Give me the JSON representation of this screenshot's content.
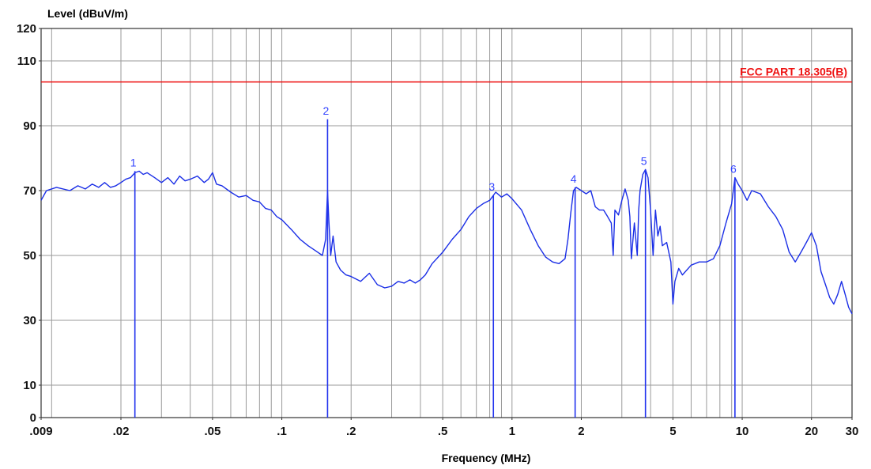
{
  "chart_data": {
    "type": "line",
    "xlabel": "Frequency (MHz)",
    "ylabel": "Level (dBuV/m)",
    "xscale": "log",
    "xlim": [
      0.009,
      30
    ],
    "ylim": [
      0,
      120
    ],
    "x_ticks": [
      {
        "value": 0.009,
        "label": ".009"
      },
      {
        "value": 0.02,
        "label": ".02"
      },
      {
        "value": 0.05,
        "label": ".05"
      },
      {
        "value": 0.1,
        "label": ".1"
      },
      {
        "value": 0.2,
        "label": ".2"
      },
      {
        "value": 0.5,
        "label": ".5"
      },
      {
        "value": 1,
        "label": "1"
      },
      {
        "value": 2,
        "label": "2"
      },
      {
        "value": 5,
        "label": "5"
      },
      {
        "value": 10,
        "label": "10"
      },
      {
        "value": 20,
        "label": "20"
      },
      {
        "value": 30,
        "label": "30"
      }
    ],
    "y_ticks": [
      {
        "value": 0,
        "label": "0"
      },
      {
        "value": 10,
        "label": "10"
      },
      {
        "value": 30,
        "label": "30"
      },
      {
        "value": 50,
        "label": "50"
      },
      {
        "value": 70,
        "label": "70"
      },
      {
        "value": 90,
        "label": "90"
      },
      {
        "value": 110,
        "label": "110"
      },
      {
        "value": 120,
        "label": "120"
      }
    ],
    "x_grid": [
      0.009,
      0.01,
      0.02,
      0.03,
      0.04,
      0.05,
      0.06,
      0.07,
      0.08,
      0.09,
      0.1,
      0.2,
      0.3,
      0.4,
      0.5,
      0.6,
      0.7,
      0.8,
      0.9,
      1,
      2,
      3,
      4,
      5,
      6,
      7,
      8,
      9,
      10,
      20,
      30
    ],
    "y_grid": [
      10,
      30,
      50,
      70,
      90,
      110
    ],
    "grid": true,
    "limit_line": {
      "label": "FCC PART 18.305(B)",
      "value": 103.5,
      "color": "#ee1111"
    },
    "series": [
      {
        "color": "#1a2ee6",
        "points": [
          [
            0.009,
            67
          ],
          [
            0.0095,
            70
          ],
          [
            0.0105,
            71
          ],
          [
            0.012,
            70
          ],
          [
            0.013,
            71.5
          ],
          [
            0.014,
            70.5
          ],
          [
            0.015,
            72
          ],
          [
            0.016,
            71
          ],
          [
            0.017,
            72.5
          ],
          [
            0.018,
            71
          ],
          [
            0.019,
            71.5
          ],
          [
            0.02,
            72.5
          ],
          [
            0.021,
            73.5
          ],
          [
            0.022,
            74
          ],
          [
            0.023,
            75.5
          ],
          [
            0.024,
            76
          ],
          [
            0.025,
            75
          ],
          [
            0.026,
            75.5
          ],
          [
            0.028,
            74
          ],
          [
            0.03,
            72.5
          ],
          [
            0.032,
            74
          ],
          [
            0.034,
            72
          ],
          [
            0.036,
            74.5
          ],
          [
            0.038,
            73
          ],
          [
            0.04,
            73.5
          ],
          [
            0.043,
            74.5
          ],
          [
            0.046,
            72.5
          ],
          [
            0.048,
            73.5
          ],
          [
            0.05,
            75.5
          ],
          [
            0.052,
            72
          ],
          [
            0.055,
            71.5
          ],
          [
            0.06,
            69.5
          ],
          [
            0.065,
            68
          ],
          [
            0.07,
            68.5
          ],
          [
            0.075,
            67
          ],
          [
            0.08,
            66.5
          ],
          [
            0.085,
            64.5
          ],
          [
            0.09,
            64
          ],
          [
            0.095,
            62
          ],
          [
            0.1,
            61
          ],
          [
            0.11,
            58
          ],
          [
            0.12,
            55
          ],
          [
            0.13,
            53
          ],
          [
            0.14,
            51.5
          ],
          [
            0.15,
            50
          ],
          [
            0.155,
            55
          ],
          [
            0.158,
            70
          ],
          [
            0.16,
            61
          ],
          [
            0.163,
            50
          ],
          [
            0.167,
            56
          ],
          [
            0.172,
            48
          ],
          [
            0.18,
            45.5
          ],
          [
            0.19,
            44
          ],
          [
            0.2,
            43.5
          ],
          [
            0.22,
            42
          ],
          [
            0.24,
            44.5
          ],
          [
            0.26,
            41
          ],
          [
            0.28,
            40
          ],
          [
            0.3,
            40.5
          ],
          [
            0.32,
            42
          ],
          [
            0.34,
            41.5
          ],
          [
            0.36,
            42.5
          ],
          [
            0.38,
            41.5
          ],
          [
            0.4,
            42.5
          ],
          [
            0.42,
            44
          ],
          [
            0.45,
            47.5
          ],
          [
            0.5,
            51
          ],
          [
            0.55,
            55
          ],
          [
            0.6,
            58
          ],
          [
            0.65,
            62
          ],
          [
            0.7,
            64.5
          ],
          [
            0.75,
            66
          ],
          [
            0.8,
            67
          ],
          [
            0.85,
            69.5
          ],
          [
            0.9,
            68
          ],
          [
            0.95,
            69
          ],
          [
            1.0,
            67.5
          ],
          [
            1.1,
            64
          ],
          [
            1.2,
            58
          ],
          [
            1.3,
            53
          ],
          [
            1.4,
            49.5
          ],
          [
            1.5,
            48
          ],
          [
            1.6,
            47.5
          ],
          [
            1.7,
            49
          ],
          [
            1.75,
            55
          ],
          [
            1.8,
            63
          ],
          [
            1.85,
            70
          ],
          [
            1.9,
            71
          ],
          [
            2.0,
            70
          ],
          [
            2.1,
            69
          ],
          [
            2.2,
            70
          ],
          [
            2.3,
            65
          ],
          [
            2.4,
            64
          ],
          [
            2.5,
            64
          ],
          [
            2.6,
            62
          ],
          [
            2.7,
            60
          ],
          [
            2.75,
            50
          ],
          [
            2.8,
            64
          ],
          [
            2.9,
            62.5
          ],
          [
            3.0,
            67
          ],
          [
            3.1,
            70.5
          ],
          [
            3.2,
            67
          ],
          [
            3.25,
            62
          ],
          [
            3.3,
            49
          ],
          [
            3.4,
            60
          ],
          [
            3.5,
            50
          ],
          [
            3.55,
            64
          ],
          [
            3.6,
            70
          ],
          [
            3.7,
            75
          ],
          [
            3.8,
            76.5
          ],
          [
            3.9,
            74
          ],
          [
            4.0,
            64
          ],
          [
            4.1,
            50
          ],
          [
            4.2,
            64
          ],
          [
            4.3,
            56
          ],
          [
            4.4,
            59
          ],
          [
            4.5,
            53
          ],
          [
            4.7,
            54
          ],
          [
            4.9,
            48
          ],
          [
            5.0,
            35
          ],
          [
            5.1,
            42
          ],
          [
            5.3,
            46
          ],
          [
            5.5,
            44
          ],
          [
            6.0,
            47
          ],
          [
            6.5,
            48
          ],
          [
            7.0,
            48
          ],
          [
            7.5,
            49
          ],
          [
            8.0,
            53
          ],
          [
            8.5,
            60
          ],
          [
            9.0,
            66
          ],
          [
            9.3,
            74
          ],
          [
            9.6,
            72
          ],
          [
            10.0,
            70
          ],
          [
            10.5,
            67
          ],
          [
            11,
            70
          ],
          [
            12,
            69
          ],
          [
            13,
            65
          ],
          [
            14,
            62
          ],
          [
            15,
            58
          ],
          [
            16,
            51
          ],
          [
            17,
            48
          ],
          [
            18,
            51
          ],
          [
            19,
            54
          ],
          [
            20,
            57
          ],
          [
            21,
            53
          ],
          [
            22,
            45
          ],
          [
            23,
            41
          ],
          [
            24,
            37
          ],
          [
            25,
            35
          ],
          [
            26,
            38
          ],
          [
            27,
            42
          ],
          [
            28,
            38
          ],
          [
            29,
            34
          ],
          [
            30,
            32
          ]
        ]
      }
    ],
    "markers": [
      {
        "label": "1",
        "x": 0.023,
        "y": 76
      },
      {
        "label": "2",
        "x": 0.158,
        "y": 92
      },
      {
        "label": "3",
        "x": 0.83,
        "y": 68.5
      },
      {
        "label": "4",
        "x": 1.88,
        "y": 71
      },
      {
        "label": "5",
        "x": 3.8,
        "y": 76.5
      },
      {
        "label": "6",
        "x": 9.3,
        "y": 74
      }
    ]
  }
}
